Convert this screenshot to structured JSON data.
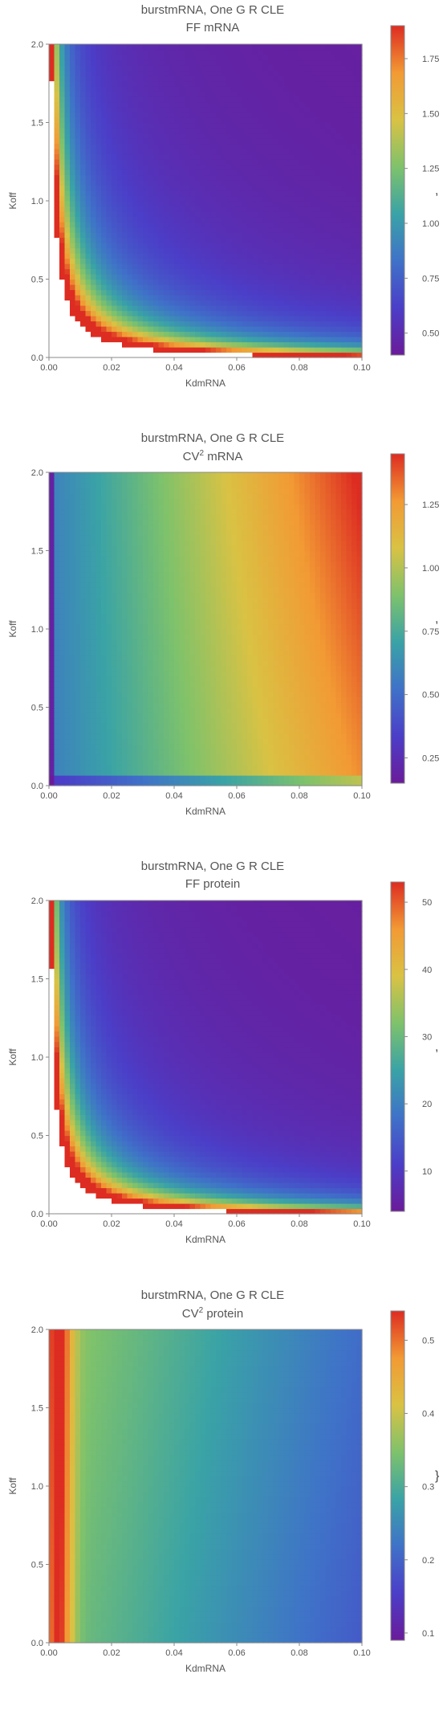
{
  "chart_data": [
    {
      "type": "heatmap",
      "title": "burstmRNA, One G R CLE",
      "subtitle": "FF mRNA",
      "subtitle_sup": "",
      "xlabel": "KdmRNA",
      "ylabel": "Koff",
      "xlim": [
        0,
        0.1
      ],
      "ylim": [
        0,
        2.0
      ],
      "x_ticks": [
        "0.00",
        "0.02",
        "0.04",
        "0.06",
        "0.08",
        "0.10"
      ],
      "y_ticks": [
        "0.0",
        "0.5",
        "1.0",
        "1.5",
        "2.0"
      ],
      "colorbar": {
        "min": 0.4,
        "max": 1.9,
        "ticks": [
          "0.50",
          "0.75",
          "1.00",
          "1.25",
          "1.50",
          "1.75"
        ]
      },
      "color_scheme": [
        "#6a1b9a",
        "#4b3ec8",
        "#3f72c8",
        "#3aa3a6",
        "#7ec26b",
        "#d9c244",
        "#f29a34",
        "#dd2c22"
      ],
      "trailing_mark": ","
    },
    {
      "type": "heatmap",
      "title": "burstmRNA, One G R CLE",
      "subtitle": "CV",
      "subtitle_sup": "2",
      "subtitle_rest": " mRNA",
      "xlabel": "KdmRNA",
      "ylabel": "Koff",
      "xlim": [
        0,
        0.1
      ],
      "ylim": [
        0,
        2.0
      ],
      "x_ticks": [
        "0.00",
        "0.02",
        "0.04",
        "0.06",
        "0.08",
        "0.10"
      ],
      "y_ticks": [
        "0.0",
        "0.5",
        "1.0",
        "1.5",
        "2.0"
      ],
      "colorbar": {
        "min": 0.15,
        "max": 1.45,
        "ticks": [
          "0.25",
          "0.50",
          "0.75",
          "1.00",
          "1.25"
        ]
      },
      "color_scheme": [
        "#6a1b9a",
        "#4b3ec8",
        "#3f72c8",
        "#3aa3a6",
        "#7ec26b",
        "#d9c244",
        "#f29a34",
        "#dd2c22"
      ],
      "trailing_mark": ","
    },
    {
      "type": "heatmap",
      "title": "burstmRNA, One G R CLE",
      "subtitle": "FF protein",
      "subtitle_sup": "",
      "xlabel": "KdmRNA",
      "ylabel": "Koff",
      "xlim": [
        0,
        0.1
      ],
      "ylim": [
        0,
        2.0
      ],
      "x_ticks": [
        "0.00",
        "0.02",
        "0.04",
        "0.06",
        "0.08",
        "0.10"
      ],
      "y_ticks": [
        "0.0",
        "0.5",
        "1.0",
        "1.5",
        "2.0"
      ],
      "colorbar": {
        "min": 4,
        "max": 53,
        "ticks": [
          "10",
          "20",
          "30",
          "40",
          "50"
        ]
      },
      "color_scheme": [
        "#6a1b9a",
        "#4b3ec8",
        "#3f72c8",
        "#3aa3a6",
        "#7ec26b",
        "#d9c244",
        "#f29a34",
        "#dd2c22"
      ],
      "trailing_mark": ","
    },
    {
      "type": "heatmap",
      "title": "burstmRNA, One G R CLE",
      "subtitle": "CV",
      "subtitle_sup": "2",
      "subtitle_rest": " protein",
      "xlabel": "KdmRNA",
      "ylabel": "Koff",
      "xlim": [
        0,
        0.1
      ],
      "ylim": [
        0,
        2.0
      ],
      "x_ticks": [
        "0.00",
        "0.02",
        "0.04",
        "0.06",
        "0.08",
        "0.10"
      ],
      "y_ticks": [
        "0.0",
        "0.5",
        "1.0",
        "1.5",
        "2.0"
      ],
      "colorbar": {
        "min": 0.09,
        "max": 0.54,
        "ticks": [
          "0.1",
          "0.2",
          "0.3",
          "0.4",
          "0.5"
        ]
      },
      "color_scheme": [
        "#6a1b9a",
        "#4b3ec8",
        "#3f72c8",
        "#3aa3a6",
        "#7ec26b",
        "#d9c244",
        "#f29a34",
        "#dd2c22"
      ],
      "trailing_mark": "}"
    }
  ]
}
